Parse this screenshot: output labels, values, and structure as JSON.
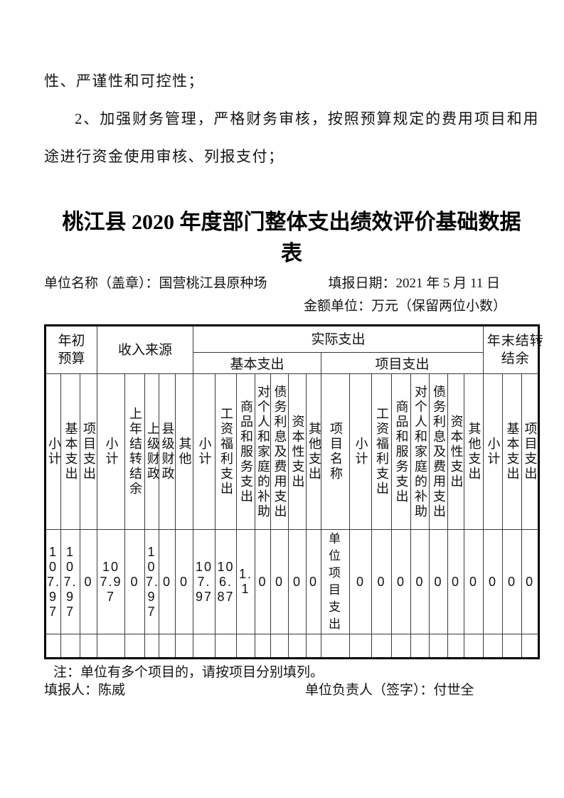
{
  "intro": {
    "line1": "性、严谨性和可控性；",
    "para2": "2、加强财务管理，严格财务审核，按照预算规定的费用项目和用途进行资金使用审核、列报支付；"
  },
  "title": "桃江县 2020 年度部门整体支出绩效评价基础数据表",
  "meta": {
    "unit_name": "单位名称（盖章）：国营桃江县原种场",
    "report_date": "填报日期：2021 年 5 月 11 日",
    "amount_unit": "金额单位：万元（保留两位小数）"
  },
  "table": {
    "groups": [
      {
        "label": "年初预算",
        "cols": [
          "小计",
          "基本支出",
          "项目支出"
        ]
      },
      {
        "label": "收入来源",
        "cols": [
          "小计",
          "上年结转结余",
          "上级财政",
          "县级财政",
          "其他"
        ]
      },
      {
        "label": "实际支出",
        "subgroups": [
          {
            "label": "基本支出",
            "cols": [
              "小计",
              "工资福利支出",
              "商品和服务支出",
              "对个人和家庭的补助",
              "债务利息及费用支出",
              "资本性支出",
              "其他支出"
            ]
          },
          {
            "label": "项目支出",
            "cols": [
              "项目名称",
              "小计",
              "工资福利支出",
              "商品和服务支出",
              "对个人和家庭的补助",
              "债务利息及费用支出",
              "资本性支出",
              "其他支出"
            ]
          }
        ]
      },
      {
        "label": "年末结转结余",
        "cols": [
          "小计",
          "基本支出",
          "项目支出"
        ]
      }
    ],
    "row": [
      "107.97",
      "107.97",
      "0",
      "107.97",
      "0",
      "107.97",
      "0",
      "0",
      "107.97",
      "106.87",
      "1.1",
      "0",
      "0",
      "0",
      "0",
      "单位项目支出",
      "0",
      "0",
      "0",
      "0",
      "0",
      "0",
      "0",
      "0",
      "0",
      "0"
    ]
  },
  "footer": {
    "note": "注：单位有多个项目的，请按项目分别填列。",
    "preparer": "填报人：陈威",
    "responsible": "单位负责人（签字）：付世全"
  }
}
